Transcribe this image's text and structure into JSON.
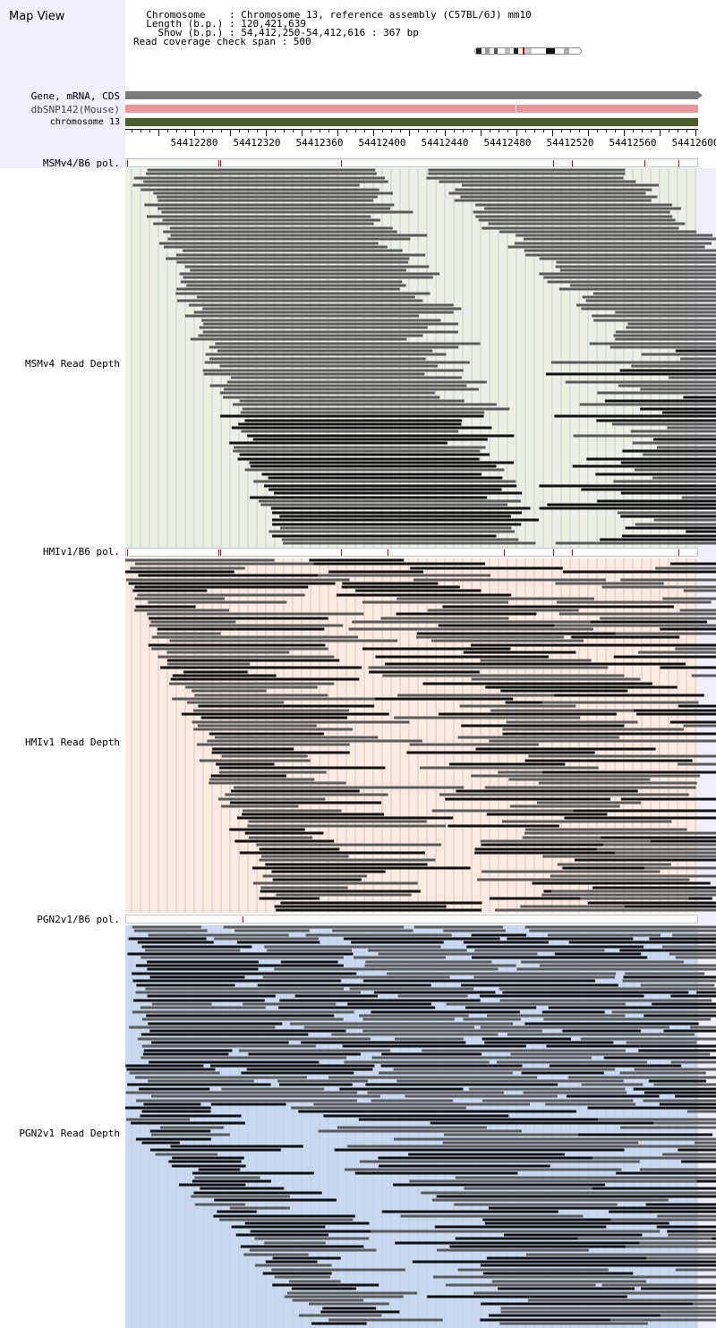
{
  "header": {
    "title": "Map View",
    "info_lines": [
      "  Chromosome    : Chromosome 13, reference assembly (C57BL/6J) mm10",
      "  Length (b.p.) : 120,421,639",
      "    Show (b.p.) : 54,412,250-54,412,616 : 367 bp",
      "Read coverage check span : 500"
    ]
  },
  "tracks": {
    "gene_label": "Gene, mRNA, CDS",
    "snp_label": "dbSNP142(Mouse)",
    "chrom_label": "chromosome 13"
  },
  "ruler": {
    "ticks": [
      "54412280",
      "54412320",
      "54412360",
      "54412400",
      "54412440",
      "54412480",
      "54412520",
      "54412560",
      "54412600"
    ]
  },
  "panels": [
    {
      "pol_label": "MSMv4/B6 pol.",
      "depth_label": "MSMv4 Read Depth",
      "bg_color": "#ecf0e2"
    },
    {
      "pol_label": "HMIv1/B6 pol.",
      "depth_label": "HMIv1 Read Depth",
      "bg_color": "#fde9dd"
    },
    {
      "pol_label": "PGN2v1/B6 pol.",
      "depth_label": "PGN2v1 Read Depth",
      "bg_color": "#c8d8ee"
    }
  ],
  "colors": {
    "gene_track": "#7a7a7a",
    "snp_track": "#e8959c",
    "chrom_track": "#4a5f2a",
    "read_dark": "#111111",
    "read_gray": "#5a5a5a",
    "polymorphism": "#cc0000",
    "grid": "#c5cde0"
  }
}
